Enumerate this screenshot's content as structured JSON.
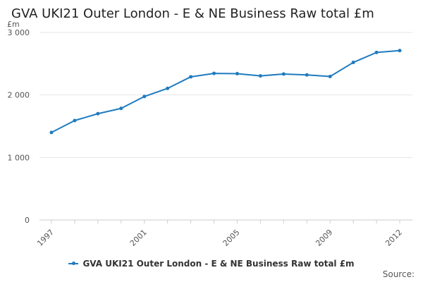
{
  "chart_data": {
    "type": "line",
    "title": "GVA UKI21 Outer London - E & NE Business Raw total £m",
    "ylabel": "£m",
    "xlabel": "",
    "x": [
      1997,
      1998,
      1999,
      2000,
      2001,
      2002,
      2003,
      2004,
      2005,
      2006,
      2007,
      2008,
      2009,
      2010,
      2011,
      2012
    ],
    "x_tick_labels": [
      "1997",
      "2001",
      "2005",
      "2009",
      "2012"
    ],
    "x_tick_values": [
      1997,
      2001,
      2005,
      2009,
      2012
    ],
    "y_tick_labels": [
      "0",
      "1 000",
      "2 000",
      "3 000"
    ],
    "y_tick_values": [
      0,
      1000,
      2000,
      3000
    ],
    "ylim": [
      0,
      3000
    ],
    "grid": true,
    "legend_position": "bottom",
    "series": [
      {
        "name": "GVA UKI21 Outer London - E & NE Business Raw total £m",
        "color": "#1f7bbf",
        "values": [
          1400,
          1590,
          1700,
          1785,
          1975,
          2105,
          2290,
          2345,
          2340,
          2305,
          2335,
          2320,
          2295,
          2520,
          2680,
          2710
        ]
      }
    ]
  },
  "source_label": "Source:"
}
